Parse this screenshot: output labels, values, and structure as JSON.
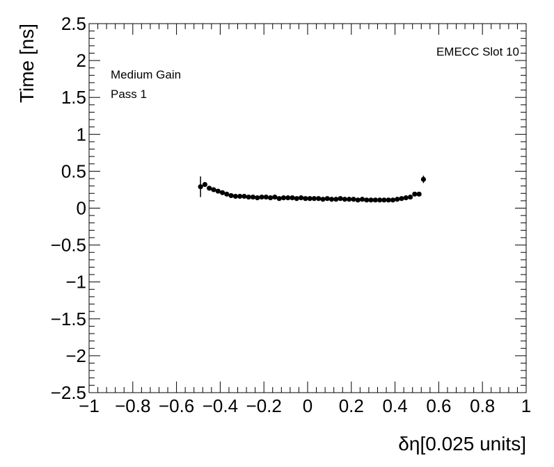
{
  "chart_data": {
    "type": "scatter",
    "xlabel": "δη[0.025 units]",
    "ylabel": "Time [ns]",
    "xlim": [
      -1,
      1
    ],
    "ylim": [
      -2.5,
      2.5
    ],
    "xticks": [
      -1,
      -0.8,
      -0.6,
      -0.4,
      -0.2,
      0,
      0.2,
      0.4,
      0.6,
      0.8,
      1
    ],
    "xtick_labels": [
      "−1",
      "−0.8",
      "−0.6",
      "−0.4",
      "−0.2",
      "0",
      "0.2",
      "0.4",
      "0.6",
      "0.8",
      "1"
    ],
    "yticks": [
      -2.5,
      -2,
      -1.5,
      -1,
      -0.5,
      0,
      0.5,
      1,
      1.5,
      2,
      2.5
    ],
    "ytick_labels": [
      "−2.5",
      "−2",
      "−1.5",
      "−1",
      "−0.5",
      "0",
      "0.5",
      "1",
      "1.5",
      "2",
      "2.5"
    ],
    "annotations": {
      "slot": "EMECC Slot 10",
      "gain": "Medium Gain",
      "pass": "Pass 1"
    },
    "series": [
      {
        "marker_color": "#000000",
        "x": [
          -0.49,
          -0.47,
          -0.45,
          -0.43,
          -0.41,
          -0.39,
          -0.37,
          -0.35,
          -0.33,
          -0.31,
          -0.29,
          -0.27,
          -0.25,
          -0.23,
          -0.21,
          -0.19,
          -0.17,
          -0.15,
          -0.13,
          -0.11,
          -0.09,
          -0.07,
          -0.05,
          -0.03,
          -0.01,
          0.01,
          0.03,
          0.05,
          0.07,
          0.09,
          0.11,
          0.13,
          0.15,
          0.17,
          0.19,
          0.21,
          0.23,
          0.25,
          0.27,
          0.29,
          0.31,
          0.33,
          0.35,
          0.37,
          0.39,
          0.41,
          0.43,
          0.45,
          0.47,
          0.49,
          0.51,
          0.53
        ],
        "y": [
          0.29,
          0.32,
          0.27,
          0.25,
          0.23,
          0.21,
          0.19,
          0.17,
          0.16,
          0.16,
          0.16,
          0.15,
          0.15,
          0.14,
          0.15,
          0.15,
          0.14,
          0.15,
          0.13,
          0.14,
          0.14,
          0.14,
          0.13,
          0.14,
          0.13,
          0.13,
          0.13,
          0.13,
          0.12,
          0.13,
          0.12,
          0.12,
          0.13,
          0.12,
          0.12,
          0.12,
          0.11,
          0.12,
          0.11,
          0.11,
          0.11,
          0.11,
          0.11,
          0.11,
          0.11,
          0.12,
          0.13,
          0.14,
          0.15,
          0.19,
          0.19,
          0.39
        ],
        "yerr": [
          0.14,
          0.03,
          0.02,
          0.02,
          0.02,
          0.02,
          0.02,
          0.02,
          0.02,
          0.02,
          0.02,
          0.02,
          0.02,
          0.02,
          0.02,
          0.02,
          0.02,
          0.02,
          0.02,
          0.02,
          0.02,
          0.02,
          0.02,
          0.02,
          0.02,
          0.02,
          0.02,
          0.02,
          0.02,
          0.02,
          0.02,
          0.02,
          0.02,
          0.02,
          0.02,
          0.02,
          0.02,
          0.02,
          0.02,
          0.02,
          0.02,
          0.02,
          0.02,
          0.02,
          0.02,
          0.02,
          0.02,
          0.02,
          0.02,
          0.02,
          0.02,
          0.05
        ]
      }
    ]
  }
}
